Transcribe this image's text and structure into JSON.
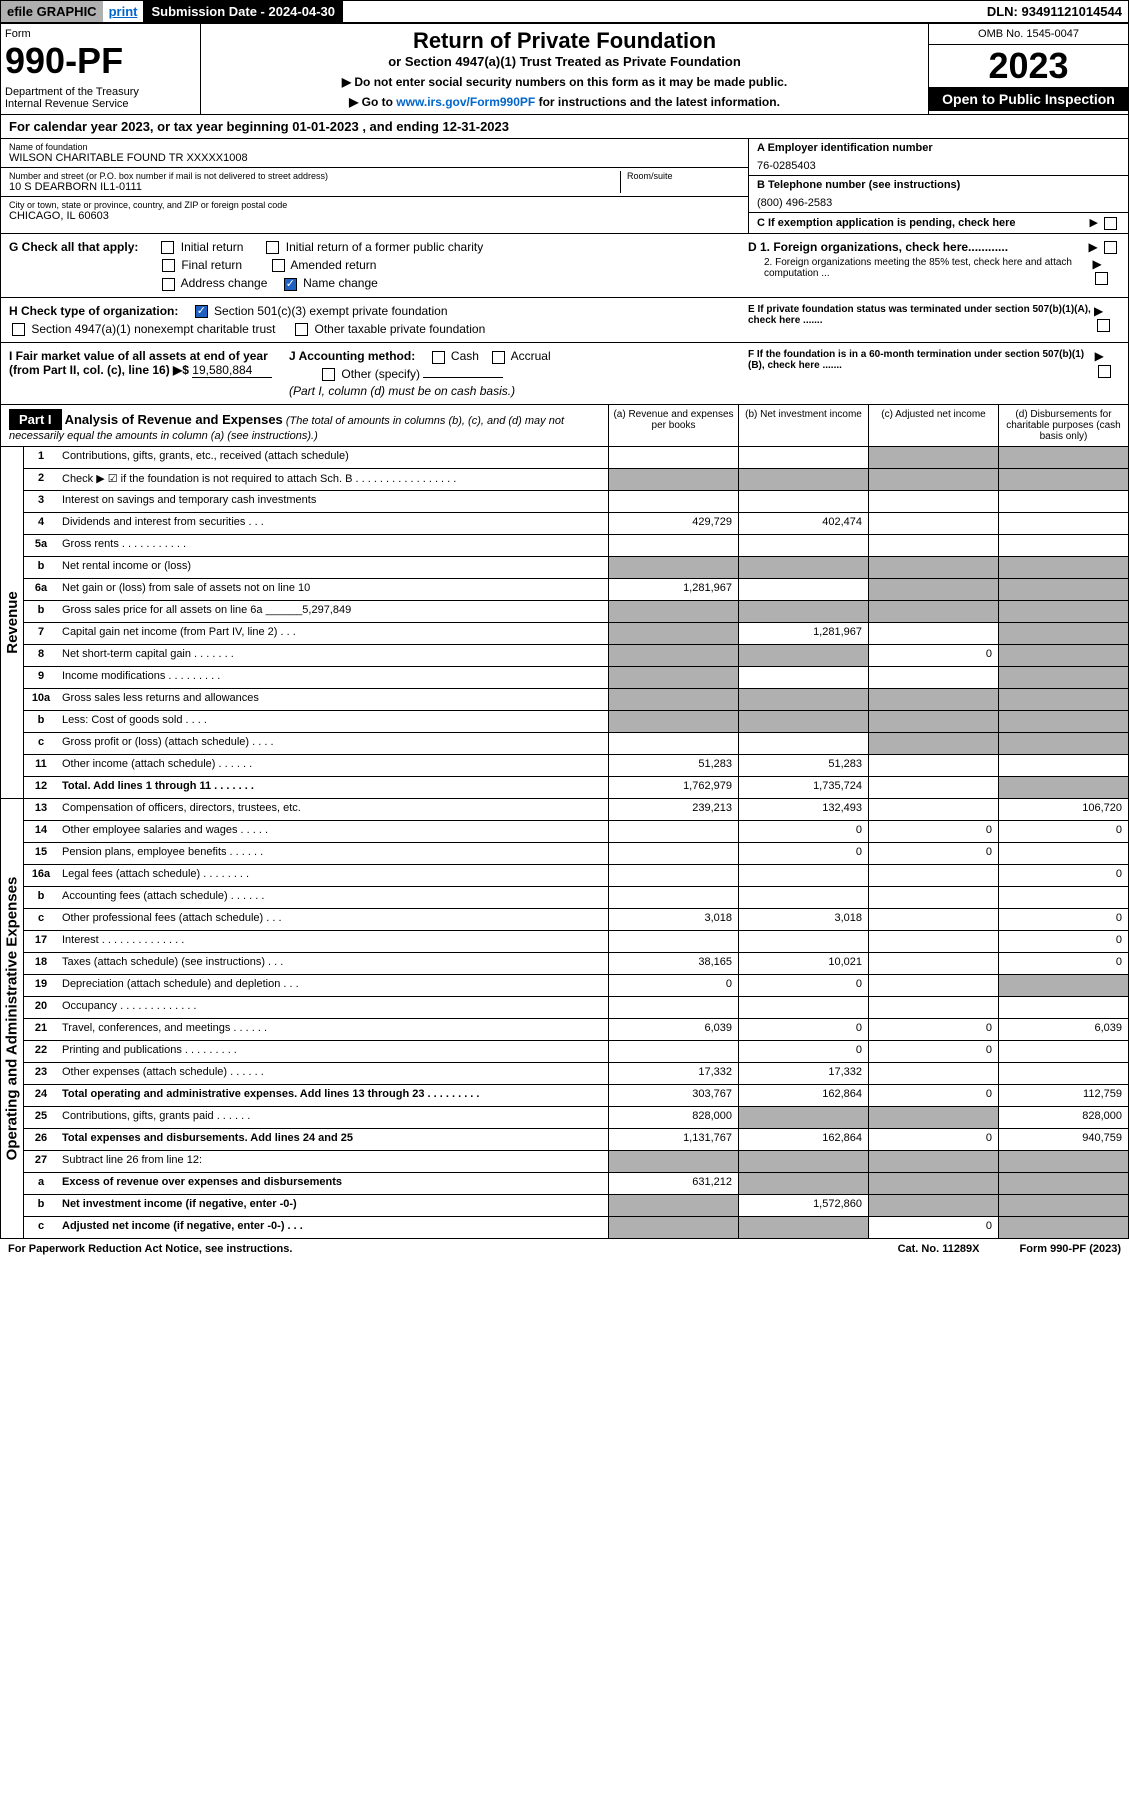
{
  "top": {
    "efile": "efile GRAPHIC",
    "print": "print",
    "submission": "Submission Date - 2024-04-30",
    "dln": "DLN: 93491121014544"
  },
  "header": {
    "form_label": "Form",
    "form_num": "990-PF",
    "dept": "Department of the Treasury\nInternal Revenue Service",
    "title": "Return of Private Foundation",
    "subtitle": "or Section 4947(a)(1) Trust Treated as Private Foundation",
    "instr1": "▶ Do not enter social security numbers on this form as it may be made public.",
    "instr2": "▶ Go to www.irs.gov/Form990PF for instructions and the latest information.",
    "omb": "OMB No. 1545-0047",
    "year": "2023",
    "inspection": "Open to Public Inspection"
  },
  "calyear": "For calendar year 2023, or tax year beginning 01-01-2023          , and ending 12-31-2023",
  "info": {
    "name_label": "Name of foundation",
    "name": "WILSON CHARITABLE FOUND TR XXXXX1008",
    "addr_label": "Number and street (or P.O. box number if mail is not delivered to street address)",
    "addr": "10 S DEARBORN IL1-0111",
    "room_label": "Room/suite",
    "city_label": "City or town, state or province, country, and ZIP or foreign postal code",
    "city": "CHICAGO, IL  60603",
    "ein_label": "A Employer identification number",
    "ein": "76-0285403",
    "phone_label": "B Telephone number (see instructions)",
    "phone": "(800) 496-2583",
    "c_label": "C If exemption application is pending, check here",
    "d1": "D 1. Foreign organizations, check here............",
    "d2": "2. Foreign organizations meeting the 85% test, check here and attach computation ...",
    "e_label": "E If private foundation status was terminated under section 507(b)(1)(A), check here .......",
    "f_label": "F If the foundation is in a 60-month termination under section 507(b)(1)(B), check here ......."
  },
  "checks": {
    "g_label": "G Check all that apply:",
    "initial": "Initial return",
    "initial_former": "Initial return of a former public charity",
    "final": "Final return",
    "amended": "Amended return",
    "address": "Address change",
    "name_change": "Name change",
    "h_label": "H Check type of organization:",
    "h1": "Section 501(c)(3) exempt private foundation",
    "h2": "Section 4947(a)(1) nonexempt charitable trust",
    "h3": "Other taxable private foundation",
    "i_label": "I Fair market value of all assets at end of year (from Part II, col. (c), line 16) ▶$",
    "i_value": "19,580,884",
    "j_label": "J Accounting method:",
    "j_cash": "Cash",
    "j_accrual": "Accrual",
    "j_other": "Other (specify)",
    "j_note": "(Part I, column (d) must be on cash basis.)"
  },
  "part1": {
    "label": "Part I",
    "title": "Analysis of Revenue and Expenses",
    "desc": "(The total of amounts in columns (b), (c), and (d) may not necessarily equal the amounts in column (a) (see instructions).)",
    "col_a": "(a) Revenue and expenses per books",
    "col_b": "(b) Net investment income",
    "col_c": "(c) Adjusted net income",
    "col_d": "(d) Disbursements for charitable purposes (cash basis only)"
  },
  "sides": {
    "revenue": "Revenue",
    "expenses": "Operating and Administrative Expenses"
  },
  "rows": {
    "r1": {
      "n": "1",
      "d": "Contributions, gifts, grants, etc., received (attach schedule)"
    },
    "r2": {
      "n": "2",
      "d": "Check ▶ ☑ if the foundation is not required to attach Sch. B   . . . . . . . . . . . . . . . . ."
    },
    "r3": {
      "n": "3",
      "d": "Interest on savings and temporary cash investments"
    },
    "r4": {
      "n": "4",
      "d": "Dividends and interest from securities   .  .  .",
      "a": "429,729",
      "b": "402,474"
    },
    "r5a": {
      "n": "5a",
      "d": "Gross rents    .  .  .  .  .  .  .  .  .  .  ."
    },
    "r5b": {
      "n": "b",
      "d": "Net rental income or (loss)"
    },
    "r6a": {
      "n": "6a",
      "d": "Net gain or (loss) from sale of assets not on line 10",
      "a": "1,281,967"
    },
    "r6b": {
      "n": "b",
      "d": "Gross sales price for all assets on line 6a ______5,297,849"
    },
    "r7": {
      "n": "7",
      "d": "Capital gain net income (from Part IV, line 2)   .  .  .",
      "b": "1,281,967"
    },
    "r8": {
      "n": "8",
      "d": "Net short-term capital gain   .  .  .  .  .  .  .",
      "c": "0"
    },
    "r9": {
      "n": "9",
      "d": "Income modifications  .  .  .  .  .  .  .  .  ."
    },
    "r10a": {
      "n": "10a",
      "d": "Gross sales less returns and allowances"
    },
    "r10b": {
      "n": "b",
      "d": "Less: Cost of goods sold   .  .  .  ."
    },
    "r10c": {
      "n": "c",
      "d": "Gross profit or (loss) (attach schedule)    .  .  .  ."
    },
    "r11": {
      "n": "11",
      "d": "Other income (attach schedule)   .  .  .  .  .  .",
      "a": "51,283",
      "b": "51,283"
    },
    "r12": {
      "n": "12",
      "d": "Total. Add lines 1 through 11    .  .  .  .  .  .  .",
      "a": "1,762,979",
      "b": "1,735,724"
    },
    "r13": {
      "n": "13",
      "d": "Compensation of officers, directors, trustees, etc.",
      "a": "239,213",
      "b": "132,493",
      "dd": "106,720"
    },
    "r14": {
      "n": "14",
      "d": "Other employee salaries and wages    .  .  .  .  .",
      "b": "0",
      "c": "0",
      "dd": "0"
    },
    "r15": {
      "n": "15",
      "d": "Pension plans, employee benefits   .  .  .  .  .  .",
      "b": "0",
      "c": "0"
    },
    "r16a": {
      "n": "16a",
      "d": "Legal fees (attach schedule)  .  .  .  .  .  .  .  .",
      "dd": "0"
    },
    "r16b": {
      "n": "b",
      "d": "Accounting fees (attach schedule)  .  .  .  .  .  ."
    },
    "r16c": {
      "n": "c",
      "d": "Other professional fees (attach schedule)    .  .  .",
      "a": "3,018",
      "b": "3,018",
      "dd": "0"
    },
    "r17": {
      "n": "17",
      "d": "Interest  .  .  .  .  .  .  .  .  .  .  .  .  .  .",
      "dd": "0"
    },
    "r18": {
      "n": "18",
      "d": "Taxes (attach schedule) (see instructions)    .  .  .",
      "a": "38,165",
      "b": "10,021",
      "dd": "0"
    },
    "r19": {
      "n": "19",
      "d": "Depreciation (attach schedule) and depletion    .  .  .",
      "a": "0",
      "b": "0"
    },
    "r20": {
      "n": "20",
      "d": "Occupancy  .  .  .  .  .  .  .  .  .  .  .  .  ."
    },
    "r21": {
      "n": "21",
      "d": "Travel, conferences, and meetings  .  .  .  .  .  .",
      "a": "6,039",
      "b": "0",
      "c": "0",
      "dd": "6,039"
    },
    "r22": {
      "n": "22",
      "d": "Printing and publications  .  .  .  .  .  .  .  .  .",
      "b": "0",
      "c": "0"
    },
    "r23": {
      "n": "23",
      "d": "Other expenses (attach schedule)  .  .  .  .  .  .",
      "a": "17,332",
      "b": "17,332"
    },
    "r24": {
      "n": "24",
      "d": "Total operating and administrative expenses. Add lines 13 through 23   . . . . . . . . .",
      "a": "303,767",
      "b": "162,864",
      "c": "0",
      "dd": "112,759"
    },
    "r25": {
      "n": "25",
      "d": "Contributions, gifts, grants paid    .  .  .  .  .  .",
      "a": "828,000",
      "dd": "828,000"
    },
    "r26": {
      "n": "26",
      "d": "Total expenses and disbursements. Add lines 24 and 25",
      "a": "1,131,767",
      "b": "162,864",
      "c": "0",
      "dd": "940,759"
    },
    "r27": {
      "n": "27",
      "d": "Subtract line 26 from line 12:"
    },
    "r27a": {
      "n": "a",
      "d": "Excess of revenue over expenses and disbursements",
      "a": "631,212"
    },
    "r27b": {
      "n": "b",
      "d": "Net investment income (if negative, enter -0-)",
      "b": "1,572,860"
    },
    "r27c": {
      "n": "c",
      "d": "Adjusted net income (if negative, enter -0-)   .  .  .",
      "c": "0"
    }
  },
  "footer": {
    "left": "For Paperwork Reduction Act Notice, see instructions.",
    "center": "Cat. No. 11289X",
    "right": "Form 990-PF (2023)"
  }
}
